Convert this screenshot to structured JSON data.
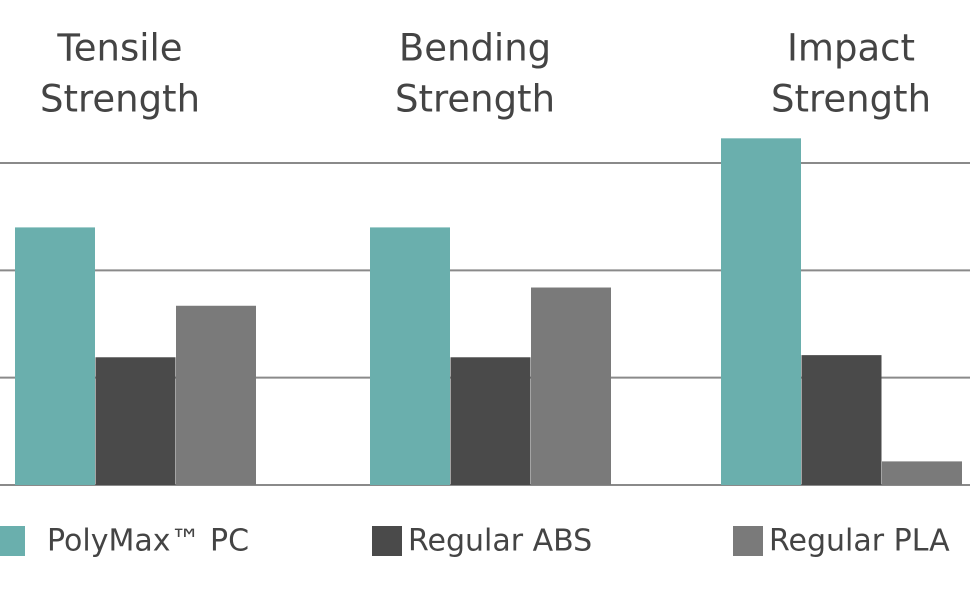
{
  "chart_data": {
    "type": "bar",
    "categories": [
      [
        "Tensile",
        "Strength"
      ],
      [
        "Bending",
        "Strength"
      ],
      [
        "Impact",
        "Strength"
      ]
    ],
    "series": [
      {
        "name": "PolyMax™ PC",
        "color": "#6aafad",
        "values": [
          2.4,
          2.4,
          3.23
        ]
      },
      {
        "name": "Regular ABS",
        "color": "#4a4a4a",
        "values": [
          1.19,
          1.19,
          1.21
        ]
      },
      {
        "name": "Regular PLA",
        "color": "#7a7a7a",
        "values": [
          1.67,
          1.84,
          0.22
        ]
      }
    ],
    "ylim": [
      0,
      3.5
    ],
    "yticks": [
      0,
      1,
      2,
      3
    ],
    "grid": true,
    "legend": "bottom"
  }
}
